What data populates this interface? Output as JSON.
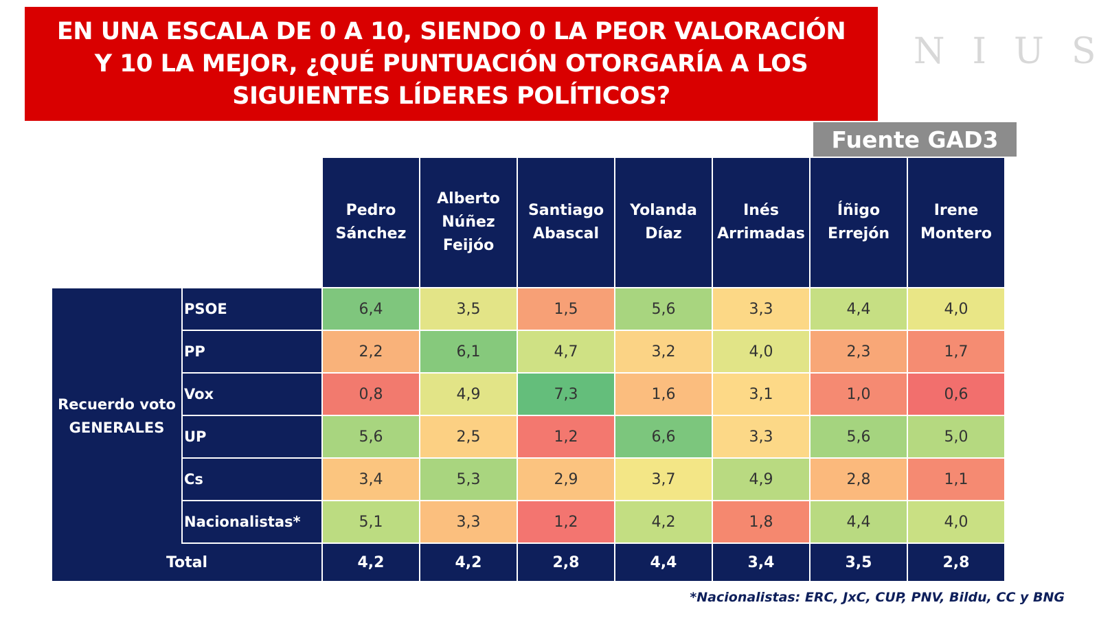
{
  "header": {
    "title": "EN UNA ESCALA DE 0 A 10, SIENDO 0 LA PEOR VALORACIÓN Y 10 LA MEJOR, ¿QUÉ PUNTUACIÓN OTORGARÍA A LOS SIGUIENTES LÍDERES POLÍTICOS?",
    "brand": "NIUS",
    "source": "Fuente GAD3"
  },
  "table": {
    "columns": [
      "Pedro Sánchez",
      "Alberto Núñez Feijóo",
      "Santiago Abascal",
      "Yolanda Díaz",
      "Inés Arrimadas",
      "Íñigo Errejón",
      "Irene Montero"
    ],
    "group_label": "Recuerdo voto GENERALES",
    "rows": [
      {
        "label": "PSOE",
        "cells": [
          "6,4",
          "3,5",
          "1,5",
          "5,6",
          "3,3",
          "4,4",
          "4,0"
        ],
        "colors": [
          "#7fc67d",
          "#e3e487",
          "#f7a076",
          "#a8d57f",
          "#fcd886",
          "#c6df83",
          "#e9e686"
        ]
      },
      {
        "label": "PP",
        "cells": [
          "2,2",
          "6,1",
          "4,7",
          "3,2",
          "4,0",
          "2,3",
          "1,7"
        ],
        "colors": [
          "#f9b27a",
          "#86c97c",
          "#cfe184",
          "#fbd385",
          "#e1e487",
          "#f8a777",
          "#f58c72"
        ]
      },
      {
        "label": "Vox",
        "cells": [
          "0,8",
          "4,9",
          "7,3",
          "1,6",
          "3,1",
          "1,0",
          "0,6"
        ],
        "colors": [
          "#f27a6e",
          "#e2e487",
          "#64be7b",
          "#fbbd7e",
          "#fdd987",
          "#f58a72",
          "#f26f6d"
        ]
      },
      {
        "label": "UP",
        "cells": [
          "5,6",
          "2,5",
          "1,2",
          "6,6",
          "3,3",
          "5,6",
          "5,0"
        ],
        "colors": [
          "#a8d57f",
          "#fcd083",
          "#f3786f",
          "#7cc67d",
          "#fcd887",
          "#a5d47f",
          "#b5d980"
        ]
      },
      {
        "label": "Cs",
        "cells": [
          "3,4",
          "5,3",
          "2,9",
          "3,7",
          "4,9",
          "2,8",
          "1,1"
        ],
        "colors": [
          "#fbc57f",
          "#a9d57f",
          "#fbc37f",
          "#f3e686",
          "#b9da81",
          "#fbb97c",
          "#f58a72"
        ]
      },
      {
        "label": "Nacionalistas*",
        "cells": [
          "5,1",
          "3,3",
          "1,2",
          "4,2",
          "1,8",
          "4,4",
          "4,0"
        ],
        "colors": [
          "#bcdc81",
          "#fbbf7e",
          "#f37570",
          "#c3de82",
          "#f5886f",
          "#b9da81",
          "#c9e083"
        ]
      }
    ],
    "total": {
      "label": "Total",
      "cells": [
        "4,2",
        "4,2",
        "2,8",
        "4,4",
        "3,4",
        "3,5",
        "2,8"
      ]
    }
  },
  "footnote": "*Nacionalistas: ERC, JxC, CUP, PNV, Bildu, CC y BNG"
}
